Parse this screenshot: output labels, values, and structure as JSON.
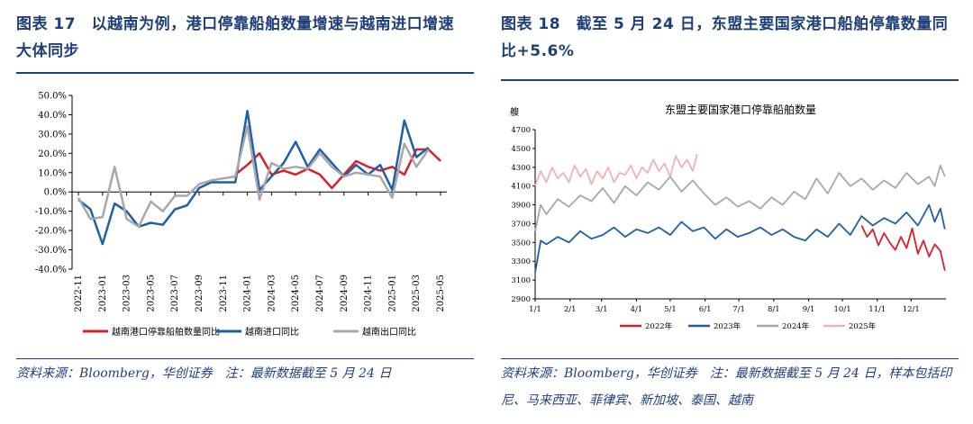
{
  "left": {
    "figure_title": "图表 17　以越南为例，港口停靠船舶数量增速与越南进口增速大体同步",
    "source_note": "资料来源：Bloomberg，华创证券　注：最新数据截至 5 月 24 日",
    "chart_data": {
      "type": "line",
      "title": "",
      "xlabel": "",
      "ylabel": "",
      "ylim": [
        -40,
        50
      ],
      "yticks": [
        "50.0%",
        "40.0%",
        "30.0%",
        "20.0%",
        "10.0%",
        "0.0%",
        "-10.0%",
        "-20.0%",
        "-30.0%",
        "-40.0%"
      ],
      "ytick_values": [
        50,
        40,
        30,
        20,
        10,
        0,
        -10,
        -20,
        -30,
        -40
      ],
      "x_tick_labels": [
        "2022-11",
        "2023-01",
        "2023-03",
        "2023-05",
        "2023-07",
        "2023-09",
        "2023-11",
        "2024-01",
        "2024-03",
        "2024-05",
        "2024-07",
        "2024-09",
        "2024-11",
        "2025-01",
        "2025-03",
        "2025-05"
      ],
      "x": [
        "2022-11",
        "2022-12",
        "2023-01",
        "2023-02",
        "2023-03",
        "2023-04",
        "2023-05",
        "2023-06",
        "2023-07",
        "2023-08",
        "2023-09",
        "2023-10",
        "2023-11",
        "2023-12",
        "2024-01",
        "2024-02",
        "2024-03",
        "2024-04",
        "2024-05",
        "2024-06",
        "2024-07",
        "2024-08",
        "2024-09",
        "2024-10",
        "2024-11",
        "2024-12",
        "2025-01",
        "2025-02",
        "2025-03",
        "2025-04",
        "2025-05"
      ],
      "grid": false,
      "legend_position": "bottom",
      "series": [
        {
          "name": "越南港口停靠船舶数量同比",
          "color": "#d7202a",
          "values": [
            null,
            null,
            null,
            null,
            null,
            null,
            null,
            null,
            null,
            null,
            null,
            null,
            null,
            9,
            14,
            20,
            9,
            11,
            9,
            12,
            9,
            2,
            9,
            16,
            13,
            11,
            13,
            9,
            22,
            22,
            16
          ]
        },
        {
          "name": "越南进口同比",
          "color": "#1f5fa8",
          "values": [
            -4,
            -9,
            -27,
            -6,
            -10,
            -18,
            -16,
            -17,
            -9,
            -7,
            2,
            5,
            5,
            5,
            42,
            1,
            8,
            15,
            26,
            13,
            22,
            15,
            8,
            14,
            9,
            14,
            1,
            37,
            18,
            23,
            null
          ]
        },
        {
          "name": "越南出口同比",
          "color": "#a8a8a8",
          "values": [
            -3,
            -14,
            -13,
            13,
            -14,
            -18,
            -5,
            -10,
            -2,
            -2,
            4,
            6,
            7,
            8,
            34,
            -4,
            15,
            12,
            13,
            12,
            20,
            13,
            8,
            10,
            9,
            8,
            -3,
            25,
            13,
            22,
            null
          ]
        }
      ]
    }
  },
  "right": {
    "figure_title": "图表 18　截至 5 月 24 日，东盟主要国家港口船舶停靠数量同比+5.6%",
    "source_note": "资料来源：Bloomberg，华创证券　注：最新数据截至 5 月 24 日，样本包括印尼、马来西亚、菲律宾、新加坡、泰国、越南",
    "chart_data": {
      "type": "line",
      "title": "东盟主要国家港口停靠船舶数量",
      "ylabel": "艘",
      "xlabel": "",
      "ylim": [
        2900,
        4700
      ],
      "yticks": [
        4700,
        4500,
        4300,
        4100,
        3900,
        3700,
        3500,
        3300,
        3100,
        2900
      ],
      "x_tick_labels": [
        "1/1",
        "2/1",
        "3/1",
        "4/1",
        "5/1",
        "6/1",
        "7/1",
        "8/1",
        "9/1",
        "10/1",
        "11/1",
        "12/1"
      ],
      "x_domain_days": [
        0,
        365
      ],
      "grid": false,
      "legend_position": "bottom",
      "series": [
        {
          "name": "2022年",
          "color": "#d7202a",
          "x_days": [
            290,
            295,
            300,
            305,
            310,
            315,
            320,
            325,
            330,
            335,
            340,
            345,
            350,
            355,
            360,
            364
          ],
          "values": [
            3680,
            3560,
            3640,
            3470,
            3600,
            3500,
            3420,
            3560,
            3440,
            3650,
            3380,
            3520,
            3350,
            3480,
            3410,
            3200
          ]
        },
        {
          "name": "2023年",
          "color": "#1f5fa8",
          "x_days": [
            0,
            5,
            10,
            20,
            30,
            40,
            50,
            60,
            70,
            80,
            90,
            100,
            110,
            120,
            130,
            140,
            150,
            160,
            170,
            180,
            190,
            200,
            210,
            220,
            230,
            240,
            250,
            260,
            270,
            280,
            290,
            300,
            310,
            320,
            330,
            340,
            350,
            355,
            360,
            364
          ],
          "values": [
            3180,
            3520,
            3480,
            3560,
            3500,
            3620,
            3540,
            3580,
            3660,
            3560,
            3640,
            3600,
            3660,
            3580,
            3720,
            3620,
            3660,
            3540,
            3640,
            3560,
            3600,
            3660,
            3580,
            3640,
            3560,
            3520,
            3640,
            3560,
            3700,
            3580,
            3780,
            3680,
            3760,
            3700,
            3820,
            3680,
            3900,
            3720,
            3860,
            3640
          ]
        },
        {
          "name": "2024年",
          "color": "#a8a8a8",
          "x_days": [
            0,
            5,
            10,
            20,
            30,
            40,
            50,
            60,
            70,
            80,
            90,
            100,
            110,
            120,
            130,
            140,
            150,
            160,
            170,
            180,
            190,
            200,
            210,
            220,
            230,
            240,
            250,
            260,
            270,
            280,
            290,
            300,
            310,
            320,
            330,
            340,
            350,
            355,
            360,
            364
          ],
          "values": [
            3620,
            3900,
            3800,
            3960,
            3880,
            4000,
            3940,
            4080,
            3920,
            4100,
            4000,
            4140,
            4060,
            4200,
            4040,
            4160,
            4020,
            3900,
            3980,
            3880,
            3940,
            3860,
            3980,
            3900,
            4040,
            3960,
            4180,
            4020,
            4240,
            4100,
            4180,
            4060,
            4160,
            4080,
            4240,
            4120,
            4200,
            4100,
            4320,
            4200
          ]
        },
        {
          "name": "2025年",
          "color": "#efb2b2",
          "x_days": [
            0,
            5,
            10,
            15,
            20,
            25,
            30,
            35,
            40,
            45,
            50,
            55,
            60,
            65,
            70,
            75,
            80,
            85,
            90,
            95,
            100,
            105,
            110,
            115,
            120,
            125,
            130,
            135,
            140,
            144
          ],
          "values": [
            4100,
            4260,
            4140,
            4300,
            4180,
            4240,
            4140,
            4320,
            4200,
            4280,
            4120,
            4260,
            4180,
            4300,
            4140,
            4240,
            4220,
            4320,
            4180,
            4300,
            4240,
            4380,
            4260,
            4340,
            4200,
            4420,
            4300,
            4380,
            4260,
            4440
          ]
        }
      ]
    }
  }
}
